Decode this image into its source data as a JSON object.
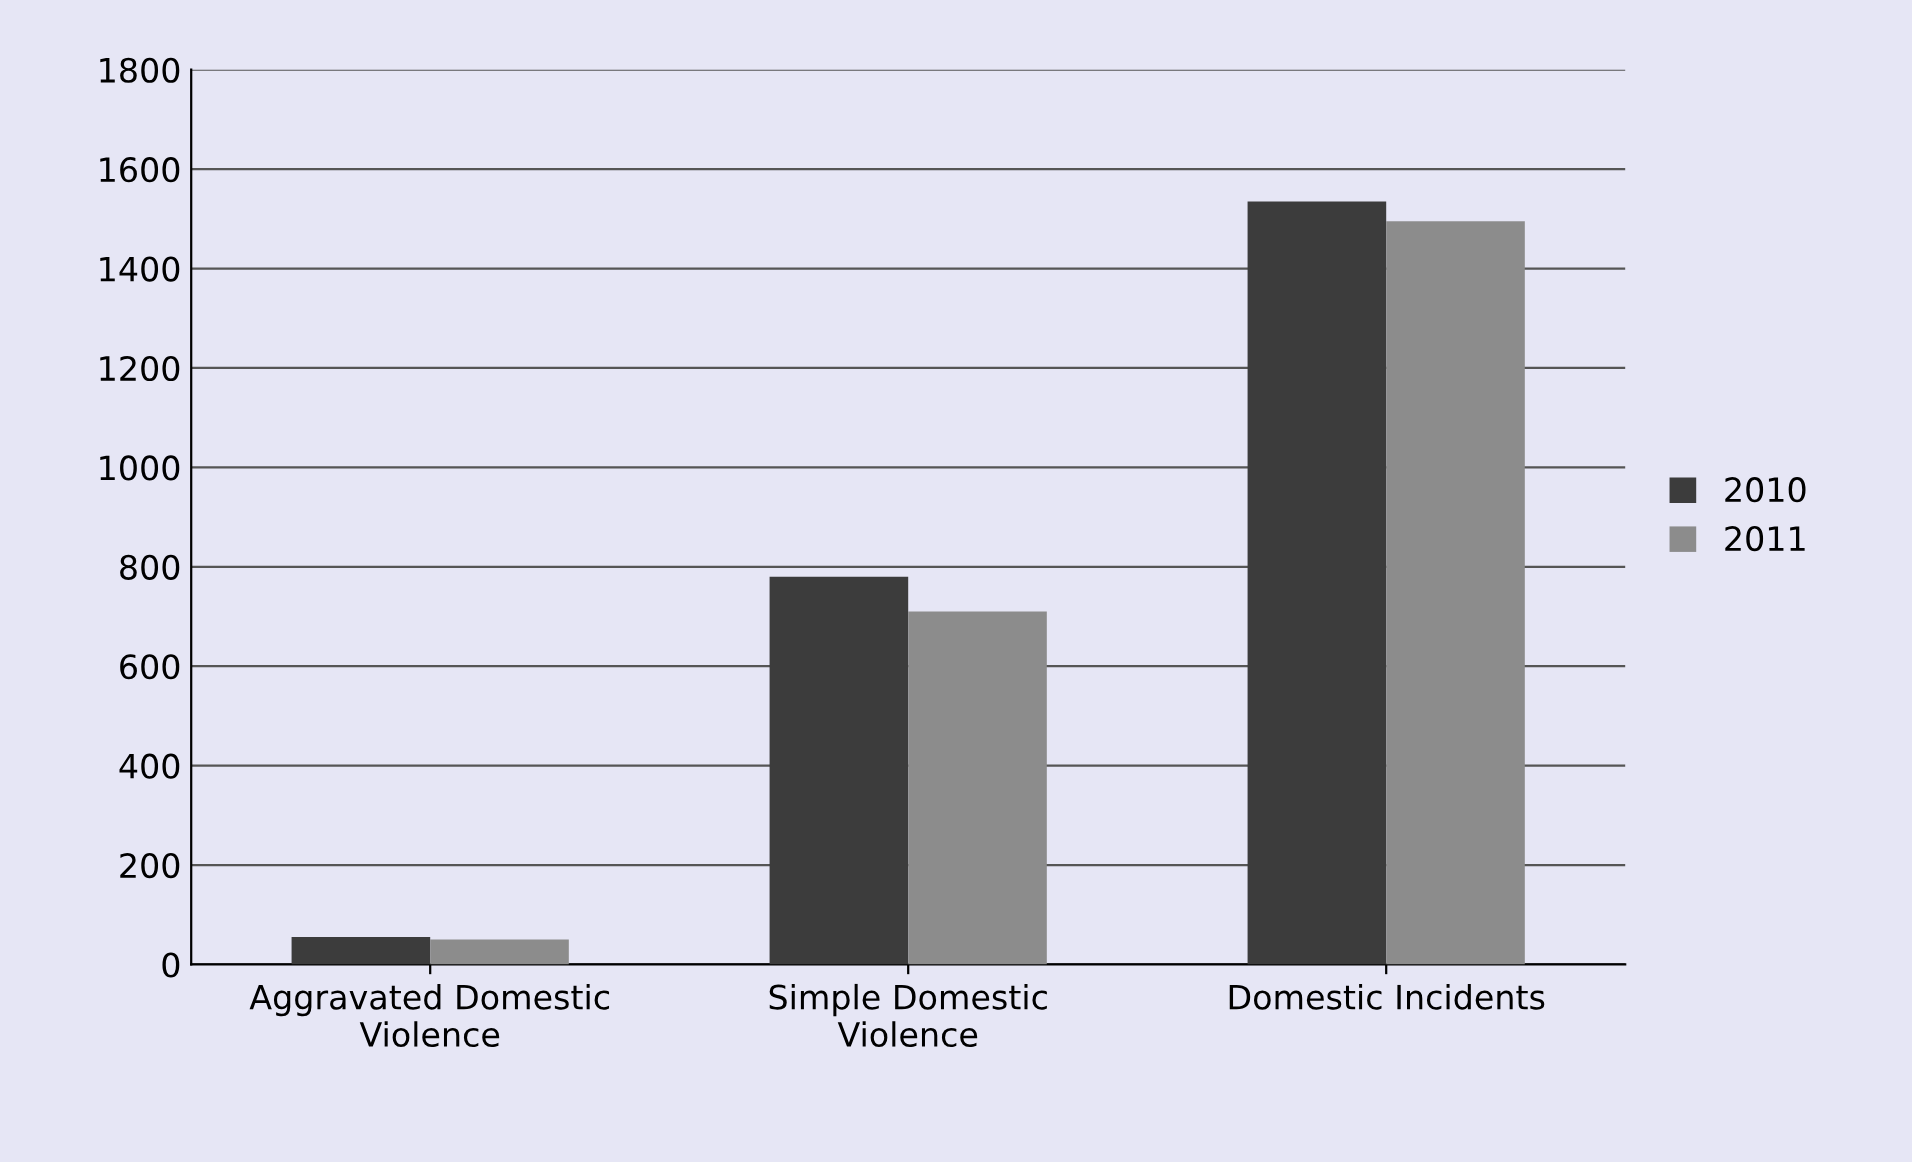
{
  "chart_data": {
    "type": "bar",
    "categories": [
      "Aggravated Domestic\nViolence",
      "Simple Domestic\nViolence",
      "Domestic Incidents"
    ],
    "series": [
      {
        "name": "2010",
        "color": "#3c3c3c",
        "values": [
          55,
          780,
          1535
        ]
      },
      {
        "name": "2011",
        "color": "#8c8c8c",
        "values": [
          50,
          710,
          1495
        ]
      }
    ],
    "ylim": [
      0,
      1800
    ],
    "yticks": [
      0,
      200,
      400,
      600,
      800,
      1000,
      1200,
      1400,
      1600,
      1800
    ],
    "grid": "y",
    "legend": "right"
  }
}
